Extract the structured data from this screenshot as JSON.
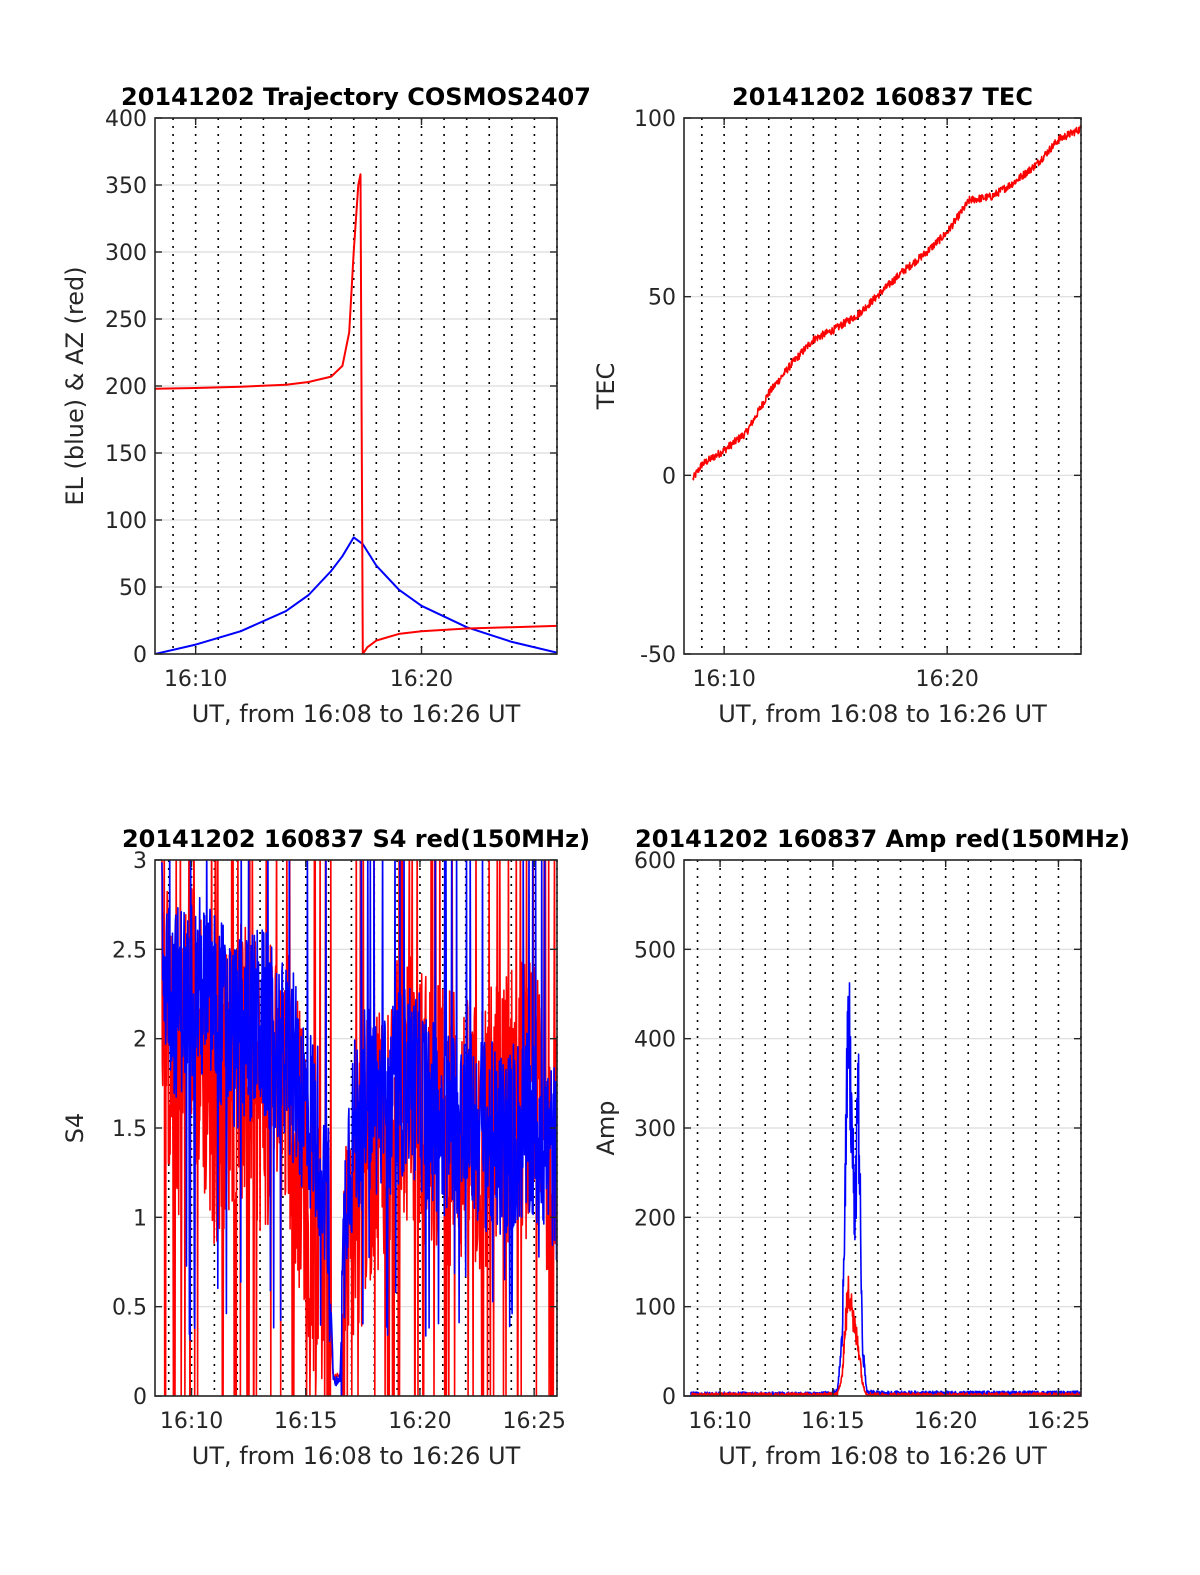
{
  "colors": {
    "el_blue": "#0000ff",
    "az_red": "#ff0000",
    "grid_h": "#dcdcdc",
    "grid_v": "#000000",
    "axis": "#262626"
  },
  "chart_data": [
    {
      "id": "trajectory",
      "type": "line",
      "title": "20141202 Trajectory COSMOS2407",
      "xlabel": "UT, from 16:08 to 16:26 UT",
      "ylabel": "EL (blue) & AZ (red)",
      "xlim": [
        8.2,
        26.0
      ],
      "ylim": [
        0,
        400
      ],
      "x_ticks": [
        10,
        20
      ],
      "x_tick_labels": [
        "16:10",
        "16:20"
      ],
      "y_ticks": [
        0,
        50,
        100,
        150,
        200,
        250,
        300,
        350,
        400
      ],
      "y_tick_labels": [
        "0",
        "50",
        "100",
        "150",
        "200",
        "250",
        "300",
        "350",
        "400"
      ],
      "minor_grid_x_minutes": true,
      "grid": true,
      "series": [
        {
          "role": "el",
          "color": "#0000ff",
          "x": [
            8.2,
            10,
            12,
            14,
            15,
            16,
            16.5,
            17.0,
            17.4,
            18,
            19,
            20,
            22,
            24,
            26
          ],
          "y": [
            0,
            7,
            17,
            32,
            44,
            62,
            73,
            87,
            82,
            66,
            48,
            36,
            20,
            9,
            1
          ]
        },
        {
          "role": "az",
          "color": "#ff0000",
          "x": [
            8.2,
            10,
            12,
            14,
            15,
            16,
            16.5,
            16.8,
            17.0,
            17.2,
            17.3,
            17.35,
            17.4,
            17.6,
            18,
            19,
            20,
            22,
            24,
            26
          ],
          "y": [
            198,
            198.5,
            199.5,
            201,
            203,
            207,
            215,
            240,
            300,
            350,
            358,
            180,
            0,
            5,
            10,
            15,
            17,
            19,
            20,
            21
          ]
        }
      ]
    },
    {
      "id": "tec",
      "type": "line",
      "title": "20141202 160837 TEC",
      "xlabel": "UT, from 16:08 to 16:26 UT",
      "ylabel": "TEC",
      "xlim": [
        8.2,
        26.0
      ],
      "ylim": [
        -50,
        100
      ],
      "x_ticks": [
        10,
        20
      ],
      "x_tick_labels": [
        "16:10",
        "16:20"
      ],
      "y_ticks": [
        -50,
        0,
        50,
        100
      ],
      "y_tick_labels": [
        "-50",
        "0",
        "50",
        "100"
      ],
      "minor_grid_x_minutes": true,
      "grid": true,
      "series": [
        {
          "role": "tec",
          "color": "#ff0000",
          "x": [
            8.6,
            9,
            10,
            11,
            12,
            13,
            14,
            15,
            16,
            17,
            18,
            19,
            20,
            21,
            22,
            23,
            24,
            25,
            26
          ],
          "y": [
            -1,
            3,
            7,
            12,
            23,
            31,
            38,
            41,
            45,
            51,
            57,
            62,
            68,
            77,
            78,
            82,
            87,
            94,
            97
          ]
        }
      ]
    },
    {
      "id": "s4",
      "type": "line",
      "title": "20141202 160837 S4 red(150MHz)",
      "xlabel": "UT, from 16:08 to 16:26 UT",
      "ylabel": "S4",
      "xlim": [
        8.4,
        26.0
      ],
      "ylim": [
        0,
        3
      ],
      "x_ticks": [
        10,
        15,
        20,
        25
      ],
      "x_tick_labels": [
        "16:10",
        "16:15",
        "16:20",
        "16:25"
      ],
      "y_ticks": [
        0,
        0.5,
        1,
        1.5,
        2,
        2.5,
        3
      ],
      "y_tick_labels": [
        "0",
        "0.5",
        "1",
        "1.5",
        "2",
        "2.5",
        "3"
      ],
      "minor_grid_x_minutes": true,
      "grid": true,
      "series": [
        {
          "role": "s4-red",
          "color": "#ff0000",
          "x": [
            8.7,
            9.3,
            10,
            11,
            12,
            13,
            14,
            14.6,
            15,
            15.4,
            15.7,
            15.9,
            16.0,
            16.2,
            16.3,
            16.5,
            16.8,
            17.2,
            17.8,
            18.5,
            19.5,
            20.5,
            21.5,
            22.5,
            23.5,
            24.5,
            25.5,
            26
          ],
          "y": [
            2.4,
            1.6,
            2.2,
            1.6,
            1.9,
            1.7,
            1.8,
            1.5,
            1.1,
            0.9,
            0.7,
            0.6,
            0.5,
            0.12,
            0.1,
            0.12,
            0.7,
            1.0,
            1.4,
            1.6,
            1.7,
            1.6,
            1.5,
            1.4,
            1.6,
            1.7,
            1.5,
            1.5
          ]
        },
        {
          "role": "s4-blue",
          "color": "#0000ff",
          "x": [
            8.7,
            9.3,
            10,
            11,
            12,
            13,
            14,
            14.6,
            15,
            15.4,
            15.7,
            15.9,
            16.0,
            16.2,
            16.3,
            16.5,
            16.8,
            17.2,
            17.8,
            18.5,
            19.5,
            20.5,
            21.5,
            22.5,
            23.5,
            24.5,
            25.5,
            26
          ],
          "y": [
            2.5,
            2.2,
            2.3,
            2.2,
            2.0,
            2.1,
            1.9,
            1.8,
            1.6,
            1.5,
            1.4,
            1.2,
            1.0,
            0.1,
            0.08,
            0.1,
            1.3,
            1.5,
            1.7,
            1.6,
            1.8,
            1.6,
            1.5,
            1.5,
            1.4,
            1.5,
            1.4,
            1.3
          ]
        }
      ]
    },
    {
      "id": "amp",
      "type": "line",
      "title": "20141202 160837 Amp red(150MHz)",
      "xlabel": "UT, from 16:08 to 16:26 UT",
      "ylabel": "Amp",
      "xlim": [
        8.4,
        26.0
      ],
      "ylim": [
        0,
        600
      ],
      "x_ticks": [
        10,
        15,
        20,
        25
      ],
      "x_tick_labels": [
        "16:10",
        "16:15",
        "16:20",
        "16:25"
      ],
      "y_ticks": [
        0,
        100,
        200,
        300,
        400,
        500,
        600
      ],
      "y_tick_labels": [
        "0",
        "100",
        "200",
        "300",
        "400",
        "500",
        "600"
      ],
      "minor_grid_x_minutes": true,
      "grid": true,
      "series": [
        {
          "role": "amp-blue",
          "color": "#0000ff",
          "x": [
            8.7,
            12,
            14.5,
            15.2,
            15.4,
            15.55,
            15.7,
            15.8,
            15.9,
            16.0,
            16.1,
            16.2,
            16.3,
            16.5,
            17,
            20,
            26
          ],
          "y": [
            2,
            2,
            2,
            5,
            60,
            250,
            410,
            330,
            250,
            180,
            380,
            230,
            60,
            5,
            3,
            3,
            3
          ]
        },
        {
          "role": "amp-red",
          "color": "#ff0000",
          "x": [
            8.7,
            14.5,
            15.2,
            15.4,
            15.55,
            15.7,
            15.8,
            15.9,
            16.0,
            16.1,
            16.2,
            16.3,
            16.5,
            17,
            26
          ],
          "y": [
            1,
            1,
            2,
            20,
            80,
            115,
            120,
            85,
            70,
            60,
            45,
            15,
            2,
            1,
            1
          ]
        }
      ]
    }
  ]
}
